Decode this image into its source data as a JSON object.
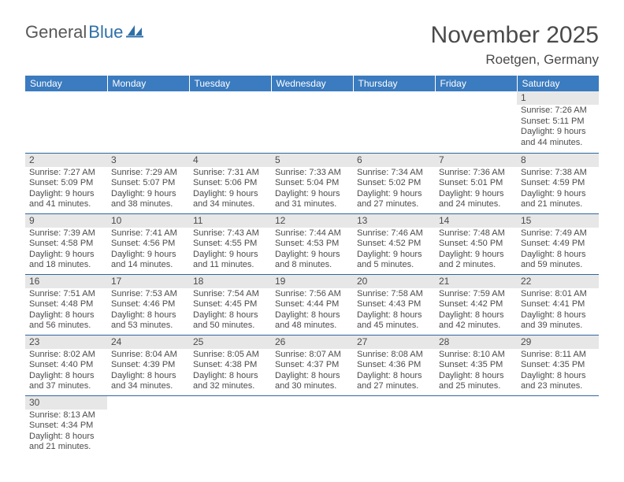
{
  "logo": {
    "general": "General",
    "blue": "Blue"
  },
  "title": "November 2025",
  "location": "Roetgen, Germany",
  "colors": {
    "header_bg": "#3b7bbf",
    "header_text": "#ffffff",
    "daynum_bg": "#e7e7e7",
    "divider": "#30689f",
    "text": "#4b4b4b",
    "logo_blue": "#2f6fa8"
  },
  "weekdays": [
    "Sunday",
    "Monday",
    "Tuesday",
    "Wednesday",
    "Thursday",
    "Friday",
    "Saturday"
  ],
  "weeks": [
    [
      {
        "day": "",
        "lines": [
          "",
          "",
          "",
          ""
        ]
      },
      {
        "day": "",
        "lines": [
          "",
          "",
          "",
          ""
        ]
      },
      {
        "day": "",
        "lines": [
          "",
          "",
          "",
          ""
        ]
      },
      {
        "day": "",
        "lines": [
          "",
          "",
          "",
          ""
        ]
      },
      {
        "day": "",
        "lines": [
          "",
          "",
          "",
          ""
        ]
      },
      {
        "day": "",
        "lines": [
          "",
          "",
          "",
          ""
        ]
      },
      {
        "day": "1",
        "lines": [
          "Sunrise: 7:26 AM",
          "Sunset: 5:11 PM",
          "Daylight: 9 hours",
          "and 44 minutes."
        ]
      }
    ],
    [
      {
        "day": "2",
        "lines": [
          "Sunrise: 7:27 AM",
          "Sunset: 5:09 PM",
          "Daylight: 9 hours",
          "and 41 minutes."
        ]
      },
      {
        "day": "3",
        "lines": [
          "Sunrise: 7:29 AM",
          "Sunset: 5:07 PM",
          "Daylight: 9 hours",
          "and 38 minutes."
        ]
      },
      {
        "day": "4",
        "lines": [
          "Sunrise: 7:31 AM",
          "Sunset: 5:06 PM",
          "Daylight: 9 hours",
          "and 34 minutes."
        ]
      },
      {
        "day": "5",
        "lines": [
          "Sunrise: 7:33 AM",
          "Sunset: 5:04 PM",
          "Daylight: 9 hours",
          "and 31 minutes."
        ]
      },
      {
        "day": "6",
        "lines": [
          "Sunrise: 7:34 AM",
          "Sunset: 5:02 PM",
          "Daylight: 9 hours",
          "and 27 minutes."
        ]
      },
      {
        "day": "7",
        "lines": [
          "Sunrise: 7:36 AM",
          "Sunset: 5:01 PM",
          "Daylight: 9 hours",
          "and 24 minutes."
        ]
      },
      {
        "day": "8",
        "lines": [
          "Sunrise: 7:38 AM",
          "Sunset: 4:59 PM",
          "Daylight: 9 hours",
          "and 21 minutes."
        ]
      }
    ],
    [
      {
        "day": "9",
        "lines": [
          "Sunrise: 7:39 AM",
          "Sunset: 4:58 PM",
          "Daylight: 9 hours",
          "and 18 minutes."
        ]
      },
      {
        "day": "10",
        "lines": [
          "Sunrise: 7:41 AM",
          "Sunset: 4:56 PM",
          "Daylight: 9 hours",
          "and 14 minutes."
        ]
      },
      {
        "day": "11",
        "lines": [
          "Sunrise: 7:43 AM",
          "Sunset: 4:55 PM",
          "Daylight: 9 hours",
          "and 11 minutes."
        ]
      },
      {
        "day": "12",
        "lines": [
          "Sunrise: 7:44 AM",
          "Sunset: 4:53 PM",
          "Daylight: 9 hours",
          "and 8 minutes."
        ]
      },
      {
        "day": "13",
        "lines": [
          "Sunrise: 7:46 AM",
          "Sunset: 4:52 PM",
          "Daylight: 9 hours",
          "and 5 minutes."
        ]
      },
      {
        "day": "14",
        "lines": [
          "Sunrise: 7:48 AM",
          "Sunset: 4:50 PM",
          "Daylight: 9 hours",
          "and 2 minutes."
        ]
      },
      {
        "day": "15",
        "lines": [
          "Sunrise: 7:49 AM",
          "Sunset: 4:49 PM",
          "Daylight: 8 hours",
          "and 59 minutes."
        ]
      }
    ],
    [
      {
        "day": "16",
        "lines": [
          "Sunrise: 7:51 AM",
          "Sunset: 4:48 PM",
          "Daylight: 8 hours",
          "and 56 minutes."
        ]
      },
      {
        "day": "17",
        "lines": [
          "Sunrise: 7:53 AM",
          "Sunset: 4:46 PM",
          "Daylight: 8 hours",
          "and 53 minutes."
        ]
      },
      {
        "day": "18",
        "lines": [
          "Sunrise: 7:54 AM",
          "Sunset: 4:45 PM",
          "Daylight: 8 hours",
          "and 50 minutes."
        ]
      },
      {
        "day": "19",
        "lines": [
          "Sunrise: 7:56 AM",
          "Sunset: 4:44 PM",
          "Daylight: 8 hours",
          "and 48 minutes."
        ]
      },
      {
        "day": "20",
        "lines": [
          "Sunrise: 7:58 AM",
          "Sunset: 4:43 PM",
          "Daylight: 8 hours",
          "and 45 minutes."
        ]
      },
      {
        "day": "21",
        "lines": [
          "Sunrise: 7:59 AM",
          "Sunset: 4:42 PM",
          "Daylight: 8 hours",
          "and 42 minutes."
        ]
      },
      {
        "day": "22",
        "lines": [
          "Sunrise: 8:01 AM",
          "Sunset: 4:41 PM",
          "Daylight: 8 hours",
          "and 39 minutes."
        ]
      }
    ],
    [
      {
        "day": "23",
        "lines": [
          "Sunrise: 8:02 AM",
          "Sunset: 4:40 PM",
          "Daylight: 8 hours",
          "and 37 minutes."
        ]
      },
      {
        "day": "24",
        "lines": [
          "Sunrise: 8:04 AM",
          "Sunset: 4:39 PM",
          "Daylight: 8 hours",
          "and 34 minutes."
        ]
      },
      {
        "day": "25",
        "lines": [
          "Sunrise: 8:05 AM",
          "Sunset: 4:38 PM",
          "Daylight: 8 hours",
          "and 32 minutes."
        ]
      },
      {
        "day": "26",
        "lines": [
          "Sunrise: 8:07 AM",
          "Sunset: 4:37 PM",
          "Daylight: 8 hours",
          "and 30 minutes."
        ]
      },
      {
        "day": "27",
        "lines": [
          "Sunrise: 8:08 AM",
          "Sunset: 4:36 PM",
          "Daylight: 8 hours",
          "and 27 minutes."
        ]
      },
      {
        "day": "28",
        "lines": [
          "Sunrise: 8:10 AM",
          "Sunset: 4:35 PM",
          "Daylight: 8 hours",
          "and 25 minutes."
        ]
      },
      {
        "day": "29",
        "lines": [
          "Sunrise: 8:11 AM",
          "Sunset: 4:35 PM",
          "Daylight: 8 hours",
          "and 23 minutes."
        ]
      }
    ],
    [
      {
        "day": "30",
        "lines": [
          "Sunrise: 8:13 AM",
          "Sunset: 4:34 PM",
          "Daylight: 8 hours",
          "and 21 minutes."
        ]
      },
      {
        "day": "",
        "lines": [
          "",
          "",
          "",
          ""
        ]
      },
      {
        "day": "",
        "lines": [
          "",
          "",
          "",
          ""
        ]
      },
      {
        "day": "",
        "lines": [
          "",
          "",
          "",
          ""
        ]
      },
      {
        "day": "",
        "lines": [
          "",
          "",
          "",
          ""
        ]
      },
      {
        "day": "",
        "lines": [
          "",
          "",
          "",
          ""
        ]
      },
      {
        "day": "",
        "lines": [
          "",
          "",
          "",
          ""
        ]
      }
    ]
  ]
}
